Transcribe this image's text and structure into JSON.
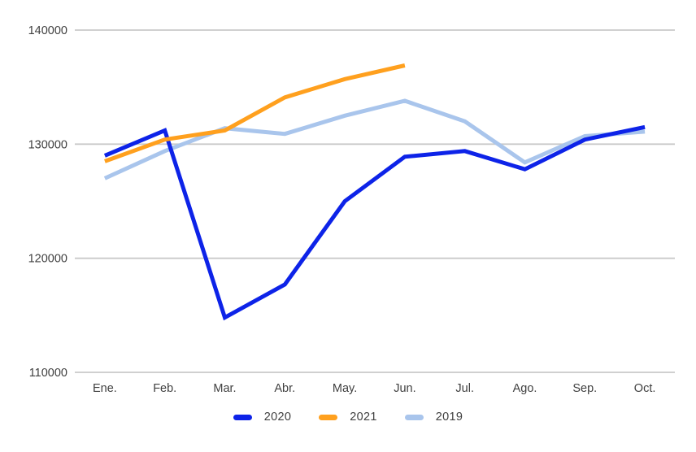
{
  "chart_data": {
    "type": "line",
    "title": "",
    "xlabel": "",
    "ylabel": "",
    "categories": [
      "Ene.",
      "Feb.",
      "Mar.",
      "Abr.",
      "May.",
      "Jun.",
      "Jul.",
      "Ago.",
      "Sep.",
      "Oct."
    ],
    "series": [
      {
        "name": "2020",
        "color": "#0d23e8",
        "values": [
          129000,
          131200,
          114800,
          117700,
          125000,
          128900,
          129400,
          127800,
          130400,
          131500
        ]
      },
      {
        "name": "2021",
        "color": "#ffa01e",
        "values": [
          128500,
          130400,
          131200,
          134100,
          135700,
          136900,
          null,
          null,
          null,
          null
        ]
      },
      {
        "name": "2019",
        "color": "#a9c5ec",
        "values": [
          127000,
          129400,
          131400,
          130900,
          132500,
          133800,
          132000,
          128400,
          130700,
          131100
        ]
      }
    ],
    "ylim": [
      110000,
      140000
    ],
    "yticks": [
      140000,
      130000,
      120000,
      110000
    ],
    "grid": true,
    "legend_position": "bottom",
    "legend_order": [
      "2020",
      "2021",
      "2019"
    ],
    "draw_order": [
      "2019",
      "2020",
      "2021"
    ]
  },
  "colors": {
    "background": "#ffffff",
    "gridline": "#c9c9c9",
    "axis_text": "#404040"
  }
}
